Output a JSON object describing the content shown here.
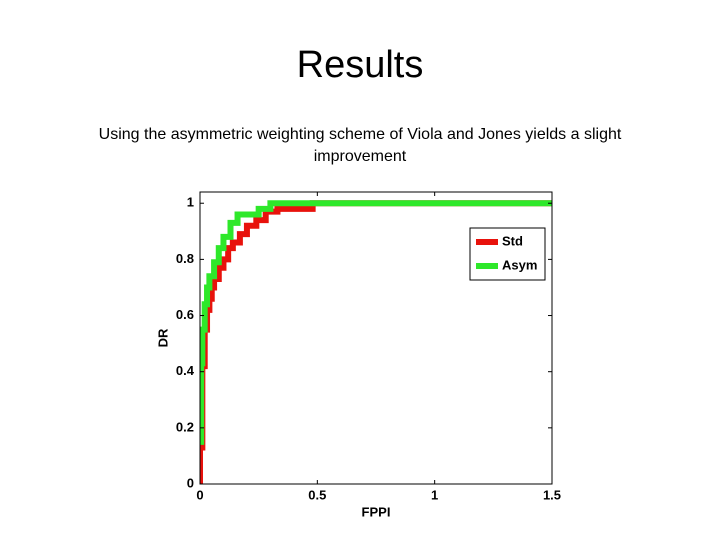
{
  "header": {
    "title": "Results",
    "subtitle": "Using the asymmetric weighting scheme of Viola and Jones yields a slight improvement"
  },
  "chart_data": {
    "type": "line",
    "x_label": "FPPI",
    "y_label": "DR",
    "xlim": [
      0,
      1.5
    ],
    "ylim": [
      0,
      1.04
    ],
    "xticks": [
      0,
      0.5,
      1,
      1.5
    ],
    "yticks": [
      0,
      0.2,
      0.4,
      0.6,
      0.8,
      1
    ],
    "legend": "upper right",
    "series": [
      {
        "name": "Std",
        "color": "#e8120c",
        "x": [
          0,
          0,
          0.01,
          0.01,
          0.02,
          0.02,
          0.03,
          0.03,
          0.04,
          0.04,
          0.05,
          0.05,
          0.06,
          0.06,
          0.08,
          0.08,
          0.1,
          0.1,
          0.12,
          0.12,
          0.14,
          0.14,
          0.17,
          0.17,
          0.2,
          0.2,
          0.24,
          0.24,
          0.28,
          0.28,
          0.33,
          0.33,
          0.48,
          0.48,
          1.5
        ],
        "values": [
          0,
          0.13,
          0.13,
          0.42,
          0.42,
          0.55,
          0.55,
          0.62,
          0.62,
          0.66,
          0.66,
          0.7,
          0.7,
          0.73,
          0.73,
          0.77,
          0.77,
          0.8,
          0.8,
          0.84,
          0.84,
          0.86,
          0.86,
          0.89,
          0.89,
          0.92,
          0.92,
          0.94,
          0.94,
          0.97,
          0.97,
          0.98,
          0.98,
          1,
          1
        ]
      },
      {
        "name": "Asym",
        "color": "#2ee82a",
        "x": [
          0,
          0.005,
          0.005,
          0.01,
          0.01,
          0.02,
          0.02,
          0.03,
          0.03,
          0.04,
          0.04,
          0.06,
          0.06,
          0.08,
          0.08,
          0.1,
          0.1,
          0.13,
          0.13,
          0.16,
          0.16,
          0.25,
          0.25,
          0.3,
          0.3,
          1.5
        ],
        "values": [
          0.15,
          0.15,
          0.43,
          0.43,
          0.55,
          0.55,
          0.64,
          0.64,
          0.7,
          0.7,
          0.74,
          0.74,
          0.79,
          0.79,
          0.84,
          0.84,
          0.88,
          0.88,
          0.93,
          0.93,
          0.96,
          0.96,
          0.98,
          0.98,
          1,
          1
        ]
      }
    ]
  }
}
